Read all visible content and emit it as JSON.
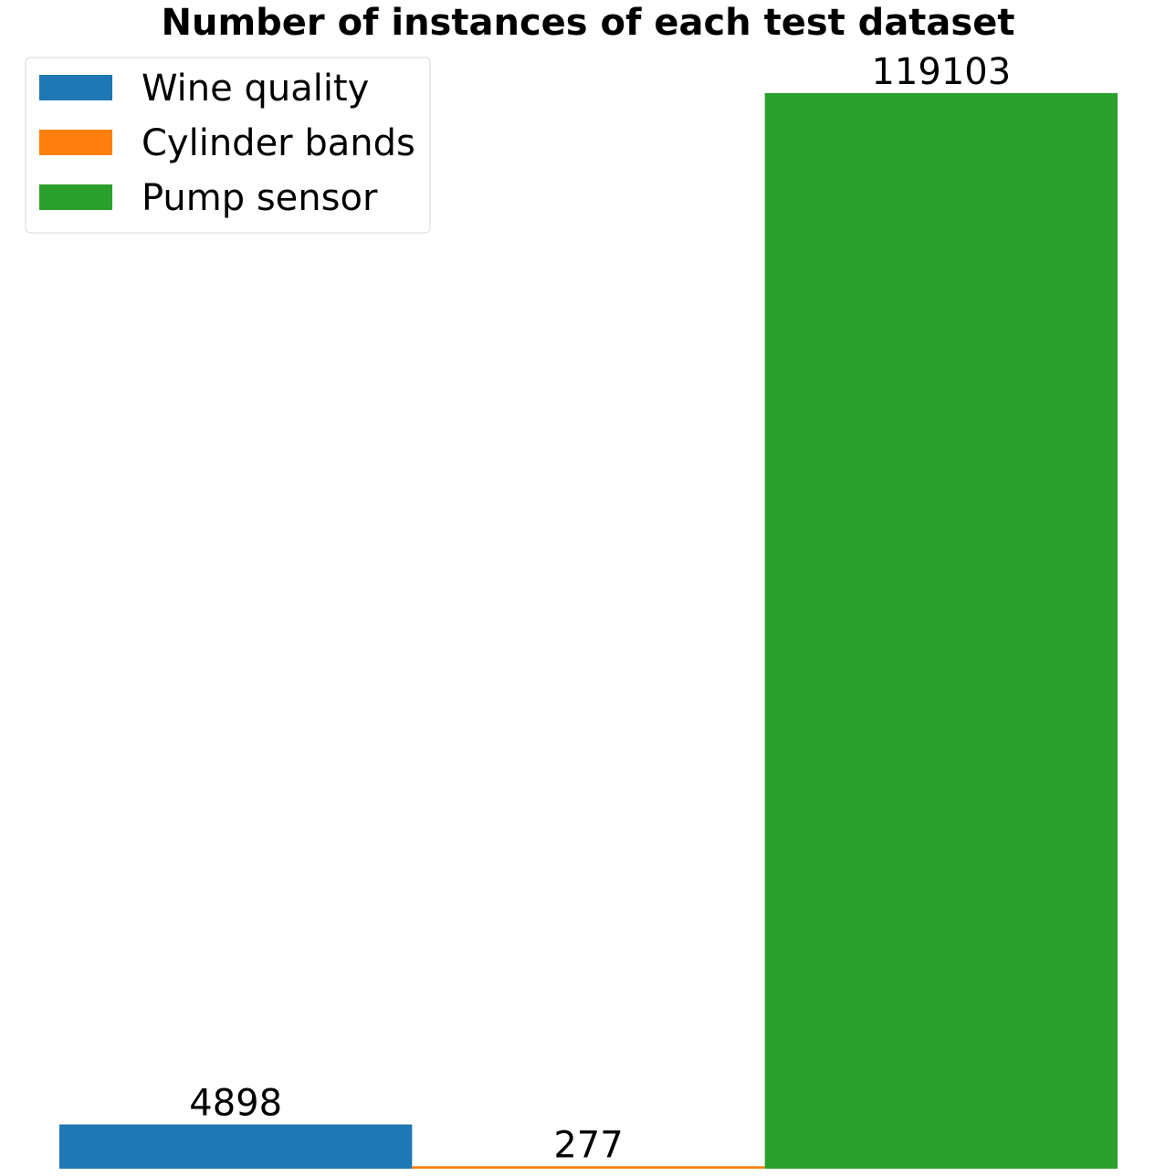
{
  "chart_data": {
    "type": "bar",
    "title": "Number of instances of each test dataset",
    "series": [
      {
        "name": "Wine quality",
        "color": "#1f77b4",
        "values": [
          4898
        ]
      },
      {
        "name": "Cylinder bands",
        "color": "#ff7f0e",
        "values": [
          277
        ]
      },
      {
        "name": "Pump sensor",
        "color": "#2ca02c",
        "values": [
          119103
        ]
      }
    ],
    "ylim": [
      0,
      125058
    ],
    "legend": "upper left"
  }
}
